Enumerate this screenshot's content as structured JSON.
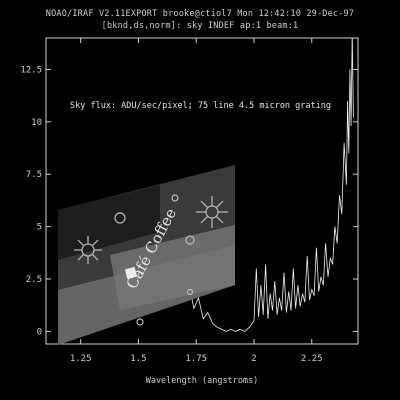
{
  "header": {
    "line1": "NOAO/IRAF V2.11EXPORT brooke@ctiol7 Mon 12:42:10 29-Dec-97",
    "line2": "[bknd,ds,norm]: sky INDEF ap:1 beam:1"
  },
  "colors": {
    "background": "#000000",
    "trace": "#f0f0f0",
    "axes": "#d0d0d0"
  },
  "chart_data": {
    "type": "line",
    "title": "",
    "annotation": "Sky flux: ADU/sec/pixel; 75 line 4.5 micron grating",
    "xlabel": "Wavelength (angstroms)",
    "ylabel": "",
    "xlim": [
      1.1,
      2.45
    ],
    "ylim": [
      -0.6,
      14.0
    ],
    "xticks": [
      1.25,
      1.5,
      1.75,
      2,
      2.25
    ],
    "xtick_labels": [
      "1.25",
      "1.5",
      "1.75",
      "2",
      "2.25"
    ],
    "yticks": [
      0,
      2.5,
      5,
      7.5,
      10,
      12.5
    ],
    "ytick_labels": [
      "0",
      "2.5",
      "5",
      "7.5",
      "10",
      "12.5"
    ],
    "grid": false,
    "series": [
      {
        "x": [
          1.16,
          1.18,
          1.2,
          1.22,
          1.24,
          1.26,
          1.28,
          1.3,
          1.32,
          1.34,
          1.36,
          1.38,
          1.4,
          1.42,
          1.44,
          1.46,
          1.48,
          1.5,
          1.52,
          1.53,
          1.55,
          1.56,
          1.58,
          1.6,
          1.62,
          1.64,
          1.66,
          1.68,
          1.7,
          1.72,
          1.74,
          1.76,
          1.78,
          1.8,
          1.82,
          1.84,
          1.86,
          1.88,
          1.9,
          1.92,
          1.94,
          1.96,
          1.98,
          2.0,
          2.01,
          2.02,
          2.03,
          2.04,
          2.05,
          2.06,
          2.07,
          2.08,
          2.09,
          2.1,
          2.11,
          2.12,
          2.13,
          2.14,
          2.15,
          2.16,
          2.17,
          2.18,
          2.19,
          2.2,
          2.21,
          2.22,
          2.23,
          2.24,
          2.25,
          2.26,
          2.27,
          2.28,
          2.29,
          2.3,
          2.31,
          2.32,
          2.33,
          2.34,
          2.35,
          2.36,
          2.37,
          2.38,
          2.39,
          2.4,
          2.405,
          2.41,
          2.415,
          2.42,
          2.425,
          2.43
        ],
        "y": [
          0.0,
          0.1,
          0.3,
          0.2,
          0.5,
          0.8,
          0.4,
          1.0,
          0.6,
          1.4,
          0.7,
          1.5,
          0.9,
          2.0,
          0.8,
          1.8,
          1.1,
          2.2,
          1.3,
          3.5,
          1.4,
          2.8,
          1.2,
          2.5,
          1.6,
          3.0,
          1.5,
          2.4,
          1.4,
          2.2,
          1.1,
          1.6,
          0.6,
          0.9,
          0.4,
          0.2,
          0.1,
          0.0,
          0.1,
          0.0,
          0.1,
          0.0,
          0.2,
          0.5,
          3.0,
          0.7,
          2.2,
          0.8,
          3.2,
          0.6,
          1.8,
          1.0,
          2.4,
          0.8,
          1.6,
          1.0,
          2.8,
          0.9,
          1.9,
          1.0,
          3.0,
          1.1,
          2.2,
          1.2,
          1.8,
          1.4,
          3.6,
          1.5,
          2.0,
          1.7,
          4.0,
          1.9,
          2.6,
          2.2,
          4.2,
          2.6,
          3.5,
          3.2,
          5.0,
          4.2,
          6.5,
          5.6,
          9.0,
          7.0,
          11.0,
          8.5,
          12.5,
          9.8,
          14.3,
          10.2
        ]
      }
    ]
  },
  "overlay_image": {
    "description_label": "Cafe Coffee packaging photo",
    "text": "Café Coffee"
  }
}
